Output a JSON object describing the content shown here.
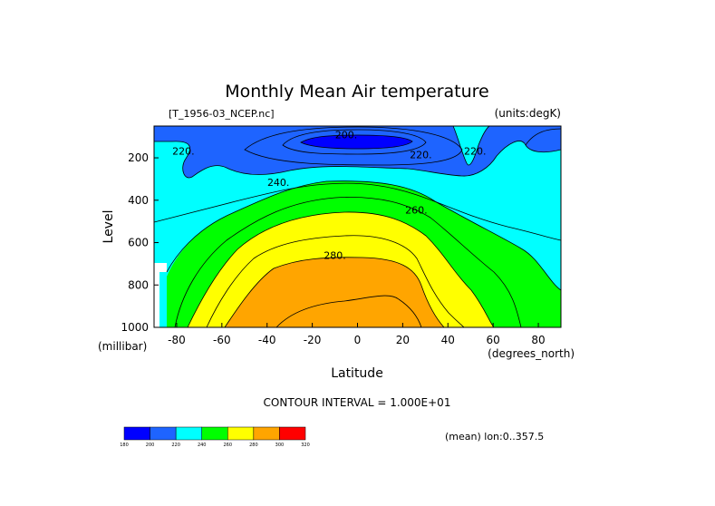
{
  "chart_data": {
    "type": "contour",
    "title": "Monthly Mean Air temperature",
    "source_label": "[T_1956-03_NCEP.nc]",
    "units_label": "(units:degK)",
    "xlabel": "Latitude",
    "x_unit_label": "(degrees_north)",
    "ylabel": "Level",
    "y_unit_label": "(millibar)",
    "xlim": [
      -90,
      90
    ],
    "ylim": [
      1000,
      50
    ],
    "x_ticks": [
      -80,
      -60,
      -40,
      -20,
      0,
      20,
      40,
      60,
      80
    ],
    "x_tick_labels": [
      "-80",
      "-60",
      "-40",
      "-20",
      "0",
      "20",
      "40",
      "60",
      "80"
    ],
    "y_ticks": [
      200,
      400,
      600,
      800,
      1000
    ],
    "y_tick_labels": [
      "200",
      "400",
      "600",
      "800",
      "1000"
    ],
    "contour_interval_text": "CONTOUR INTERVAL = 1.000E+01",
    "contour_levels": [
      200,
      210,
      220,
      230,
      240,
      250,
      260,
      270,
      280,
      290
    ],
    "contour_labels": [
      {
        "text": "200.",
        "x": -5,
        "y": 90
      },
      {
        "text": "220.",
        "x": -77,
        "y": 168
      },
      {
        "text": "220.",
        "x": 28,
        "y": 185
      },
      {
        "text": "220.",
        "x": 52,
        "y": 168
      },
      {
        "text": "240.",
        "x": -35,
        "y": 315
      },
      {
        "text": "260.",
        "x": 26,
        "y": 445
      },
      {
        "text": "280.",
        "x": -10,
        "y": 660
      }
    ],
    "colorbar": {
      "bins": [
        {
          "from": 180,
          "to": 200,
          "color": "#0000ff"
        },
        {
          "from": 200,
          "to": 220,
          "color": "#1e64ff"
        },
        {
          "from": 220,
          "to": 240,
          "color": "#00ffff"
        },
        {
          "from": 240,
          "to": 260,
          "color": "#00ff00"
        },
        {
          "from": 260,
          "to": 280,
          "color": "#ffff00"
        },
        {
          "from": 280,
          "to": 300,
          "color": "#ffa500"
        },
        {
          "from": 300,
          "to": 320,
          "color": "#ff0000"
        }
      ],
      "tick_labels": [
        "180",
        "200",
        "220",
        "240",
        "260",
        "280",
        "300",
        "320"
      ]
    },
    "footer_note": "(mean) lon:0..357.5"
  }
}
